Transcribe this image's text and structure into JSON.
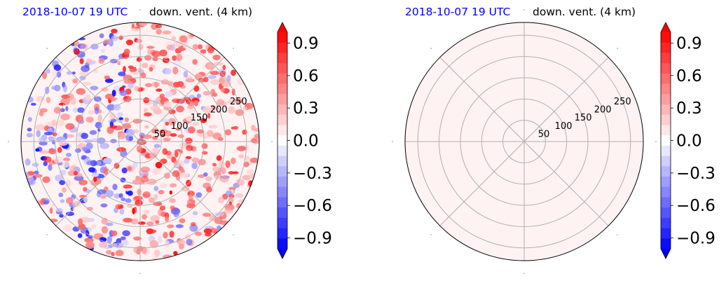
{
  "colors": {
    "negative_max": "#0000ff",
    "neutral": "#ffffff",
    "positive_max": "#ff0000",
    "grid": "#b0b0b0",
    "title_date": "#0000ff"
  },
  "chart_data": [
    {
      "type": "heatmap",
      "projection": "polar",
      "title_date": "2018-10-07 19 UTC",
      "title_field": "down. vent. (4 km)",
      "radial_ticks": [
        "50",
        "100",
        "150",
        "200",
        "250"
      ],
      "radial_tick_values": [
        50,
        100,
        150,
        200,
        250
      ],
      "radial_max": 280,
      "angular_grid_deg": [
        0,
        45,
        90,
        135,
        180,
        225,
        270,
        315
      ],
      "colorbar": {
        "vmin": -1.0,
        "vmax": 1.0,
        "levels": 21,
        "extend": "both",
        "ticks": [
          0.9,
          0.6,
          0.3,
          0.0,
          -0.3,
          -0.6,
          -0.9
        ],
        "tick_labels": [
          "0.9",
          "0.6",
          "0.3",
          "0.0",
          "−0.3",
          "−0.6",
          "−0.9"
        ]
      },
      "field_description": "scattered positive (red) and negative (blue) patches; strongest red cells east of centre, blue cells to the west"
    },
    {
      "type": "heatmap",
      "projection": "polar",
      "title_date": "2018-10-07 19 UTC",
      "title_field": "down. vent. (4 km)",
      "radial_ticks": [
        "50",
        "100",
        "150",
        "200",
        "250"
      ],
      "radial_tick_values": [
        50,
        100,
        150,
        200,
        250
      ],
      "radial_max": 280,
      "angular_grid_deg": [
        0,
        45,
        90,
        135,
        180,
        225,
        270,
        315
      ],
      "colorbar": {
        "vmin": -1.0,
        "vmax": 1.0,
        "levels": 21,
        "extend": "both",
        "ticks": [
          0.9,
          0.6,
          0.3,
          0.0,
          -0.3,
          -0.6,
          -0.9
        ],
        "tick_labels": [
          "0.9",
          "0.6",
          "0.3",
          "0.0",
          "−0.3",
          "−0.6",
          "−0.9"
        ]
      },
      "uniform_value": 0.05
    }
  ]
}
